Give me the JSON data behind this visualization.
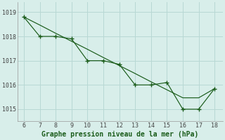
{
  "x": [
    6,
    7,
    8,
    9,
    10,
    11,
    12,
    13,
    14,
    15,
    16,
    17,
    18
  ],
  "line1_straight": [
    1018.8,
    1018.47,
    1018.13,
    1017.8,
    1017.47,
    1017.13,
    1016.8,
    1016.47,
    1016.13,
    1015.8,
    1015.47,
    1015.47,
    1015.85
  ],
  "line2": [
    1018.8,
    1018.0,
    1018.0,
    1017.9,
    1017.0,
    1017.0,
    1016.85,
    1016.0,
    1016.0,
    1016.1,
    1015.0,
    1015.0,
    1015.85
  ],
  "line_color": "#1a5c1a",
  "bg_color": "#d8eeea",
  "grid_color": "#b8d8d4",
  "xlabel": "Graphe pression niveau de la mer (hPa)",
  "xlabel_color": "#1a5c1a",
  "xlabel_fontsize": 7.0,
  "tick_fontsize": 6.0,
  "ylim": [
    1014.5,
    1019.4
  ],
  "xlim": [
    5.6,
    18.5
  ],
  "yticks": [
    1015,
    1016,
    1017,
    1018,
    1019
  ],
  "xticks": [
    6,
    7,
    8,
    9,
    10,
    11,
    12,
    13,
    14,
    15,
    16,
    17,
    18
  ]
}
